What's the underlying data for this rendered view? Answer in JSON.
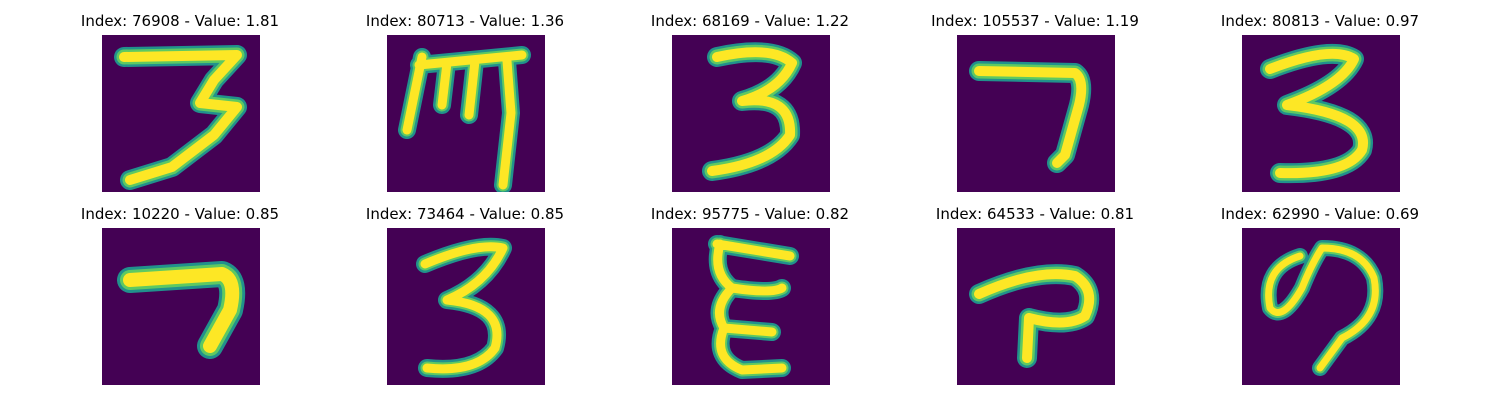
{
  "panels": [
    {
      "label": "Index: 76908 - Value: 1.81"
    },
    {
      "label": "Index: 80713 - Value: 1.36"
    },
    {
      "label": "Index: 68169 - Value: 1.22"
    },
    {
      "label": "Index: 105537 - Value: 1.19"
    },
    {
      "label": "Index: 80813 - Value: 0.97"
    },
    {
      "label": "Index: 10220 - Value: 0.85"
    },
    {
      "label": "Index: 73464 - Value: 0.85"
    },
    {
      "label": "Index: 95775 - Value: 0.82"
    },
    {
      "label": "Index: 64533 - Value: 0.81"
    },
    {
      "label": "Index: 62990 - Value: 0.69"
    }
  ],
  "colors": {
    "background": "#440154",
    "stroke_outer": "#21918c",
    "stroke_mid": "#5ec962",
    "stroke_core": "#fde725"
  }
}
